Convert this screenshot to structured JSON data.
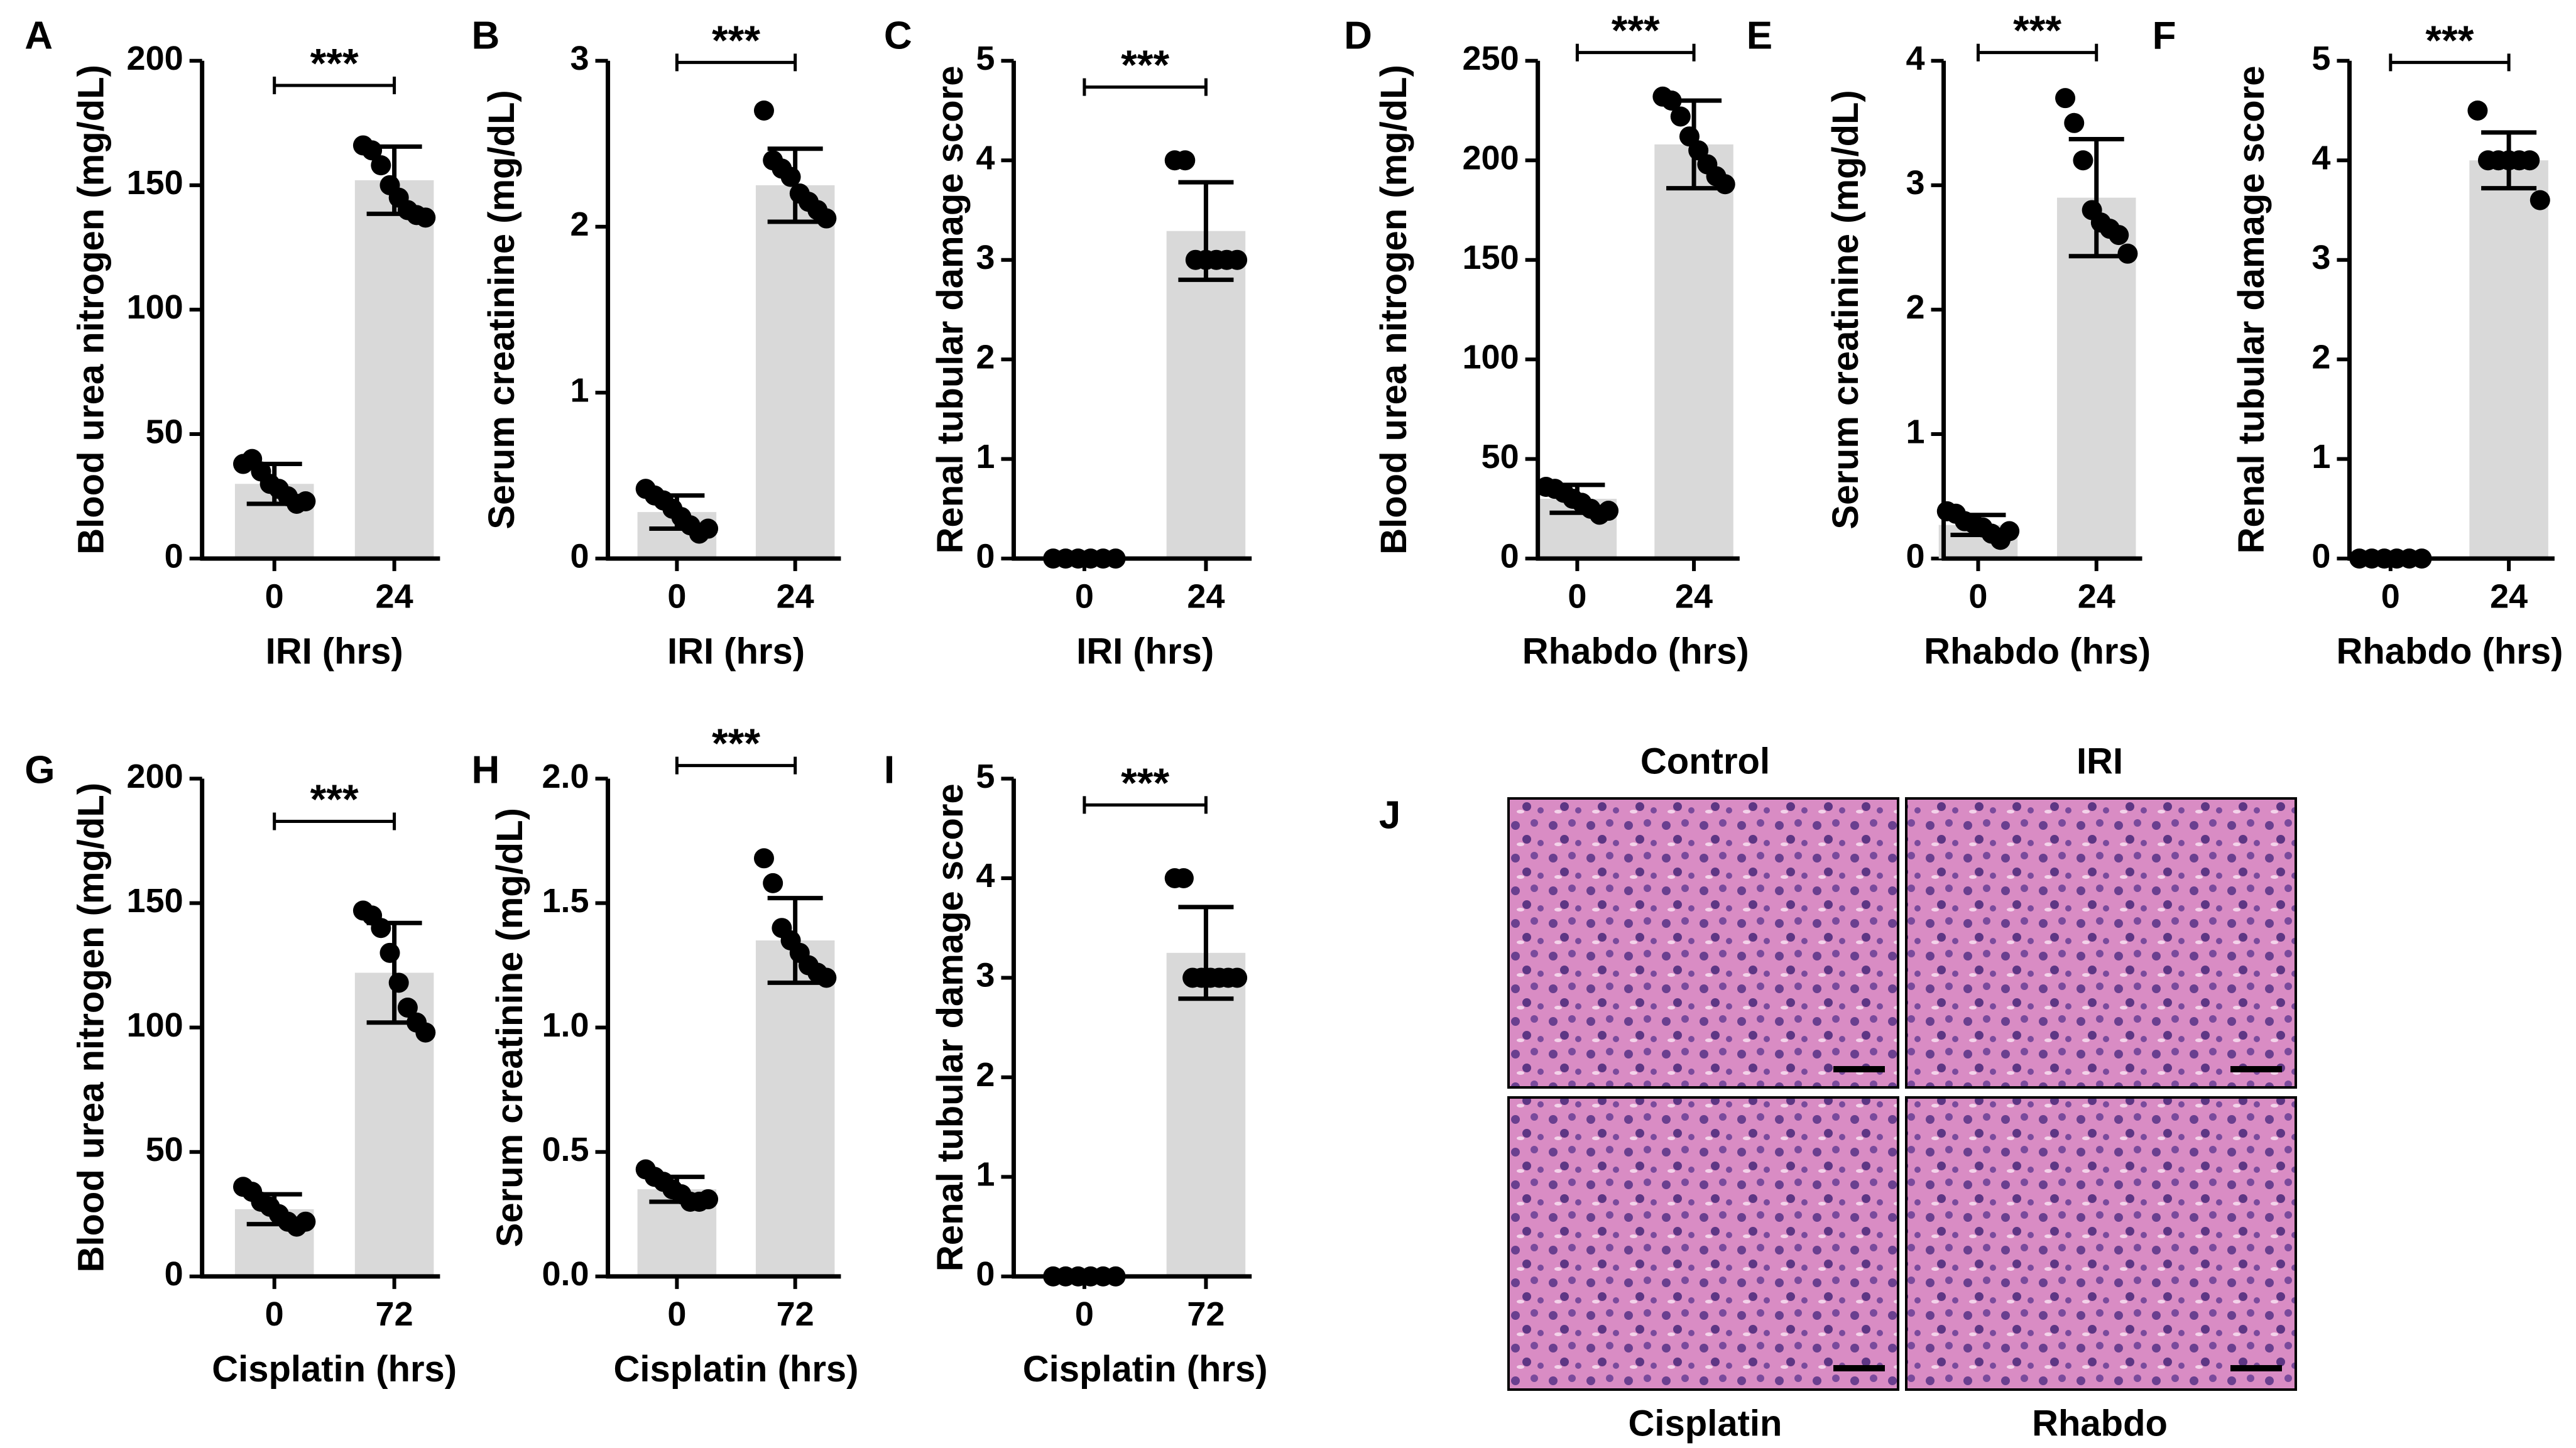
{
  "chart_data": [
    {
      "type": "bar",
      "panel": "A",
      "ylabel": "Blood urea nitrogen (mg/dL)",
      "xlabel": "IRI (hrs)",
      "categories": [
        "0",
        "24"
      ],
      "values": [
        30,
        152
      ],
      "errors": [
        8,
        13.5
      ],
      "points": [
        [
          38,
          40,
          35,
          30,
          28,
          25,
          22,
          23
        ],
        [
          166,
          164,
          158,
          150,
          145,
          140,
          138,
          137
        ]
      ],
      "annotation": "***",
      "color": "#d9d9d9",
      "point_color": "#000000",
      "ylim": [
        0,
        200
      ],
      "yticks": [
        0,
        50,
        100,
        150,
        200
      ]
    },
    {
      "type": "bar",
      "panel": "B",
      "ylabel": "Serum creatinine (mg/dL)",
      "xlabel": "IRI (hrs)",
      "categories": [
        "0",
        "24"
      ],
      "values": [
        0.28,
        2.25
      ],
      "errors": [
        0.1,
        0.22
      ],
      "points": [
        [
          0.42,
          0.38,
          0.35,
          0.3,
          0.25,
          0.2,
          0.15,
          0.18
        ],
        [
          2.7,
          2.4,
          2.35,
          2.3,
          2.2,
          2.15,
          2.1,
          2.05
        ]
      ],
      "annotation": "***",
      "color": "#d9d9d9",
      "point_color": "#000000",
      "ylim": [
        0,
        3
      ],
      "yticks": [
        0,
        1,
        2,
        3
      ]
    },
    {
      "type": "bar",
      "panel": "C",
      "ylabel": "Renal tubular damage score",
      "xlabel": "IRI (hrs)",
      "categories": [
        "0",
        "24"
      ],
      "values": [
        0,
        3.29
      ],
      "errors": [
        0,
        0.49
      ],
      "points": [
        [
          0,
          0,
          0,
          0,
          0,
          0
        ],
        [
          4,
          4,
          3,
          3,
          3,
          3,
          3
        ]
      ],
      "annotation": "***",
      "color": "#d9d9d9",
      "point_color": "#000000",
      "ylim": [
        0,
        5
      ],
      "yticks": [
        0,
        1,
        2,
        3,
        4,
        5
      ]
    },
    {
      "type": "bar",
      "panel": "D",
      "ylabel": "Blood urea nitrogen (mg/dL)",
      "xlabel": "Rhabdo (hrs)",
      "categories": [
        "0",
        "24"
      ],
      "values": [
        30,
        208
      ],
      "errors": [
        7,
        22
      ],
      "points": [
        [
          36,
          35,
          33,
          30,
          28,
          25,
          22,
          24
        ],
        [
          232,
          230,
          222,
          212,
          205,
          198,
          192,
          188
        ]
      ],
      "annotation": "***",
      "color": "#d9d9d9",
      "point_color": "#000000",
      "ylim": [
        0,
        250
      ],
      "yticks": [
        0,
        50,
        100,
        150,
        200,
        250
      ]
    },
    {
      "type": "bar",
      "panel": "E",
      "ylabel": "Serum creatinine (mg/dL)",
      "xlabel": "Rhabdo (hrs)",
      "categories": [
        "0",
        "24"
      ],
      "values": [
        0.27,
        2.9
      ],
      "errors": [
        0.08,
        0.47
      ],
      "points": [
        [
          0.38,
          0.36,
          0.3,
          0.28,
          0.25,
          0.2,
          0.15,
          0.22
        ],
        [
          3.7,
          3.5,
          3.2,
          2.8,
          2.7,
          2.65,
          2.6,
          2.45
        ]
      ],
      "annotation": "***",
      "color": "#d9d9d9",
      "point_color": "#000000",
      "ylim": [
        0,
        4
      ],
      "yticks": [
        0,
        1,
        2,
        3,
        4
      ]
    },
    {
      "type": "bar",
      "panel": "F",
      "ylabel": "Renal tubular damage score",
      "xlabel": "Rhabdo (hrs)",
      "categories": [
        "0",
        "24"
      ],
      "values": [
        0,
        4
      ],
      "errors": [
        0,
        0.28
      ],
      "points": [
        [
          0,
          0,
          0,
          0,
          0,
          0
        ],
        [
          4.5,
          4,
          4,
          4,
          4,
          4,
          3.6
        ]
      ],
      "annotation": "***",
      "color": "#d9d9d9",
      "point_color": "#000000",
      "ylim": [
        0,
        5
      ],
      "yticks": [
        0,
        1,
        2,
        3,
        4,
        5
      ]
    },
    {
      "type": "bar",
      "panel": "G",
      "ylabel": "Blood urea nitrogen (mg/dL)",
      "xlabel": "Cisplatin (hrs)",
      "categories": [
        "0",
        "72"
      ],
      "values": [
        27,
        122
      ],
      "errors": [
        6,
        20
      ],
      "points": [
        [
          36,
          34,
          30,
          28,
          25,
          22,
          20,
          22
        ],
        [
          147,
          145,
          140,
          130,
          118,
          108,
          102,
          98
        ]
      ],
      "annotation": "***",
      "color": "#d9d9d9",
      "point_color": "#000000",
      "ylim": [
        0,
        200
      ],
      "yticks": [
        0,
        50,
        100,
        150,
        200
      ]
    },
    {
      "type": "bar",
      "panel": "H",
      "ylabel": "Serum creatinine (mg/dL)",
      "xlabel": "Cisplatin (hrs)",
      "categories": [
        "0",
        "72"
      ],
      "values": [
        0.35,
        1.35
      ],
      "errors": [
        0.05,
        0.17
      ],
      "points": [
        [
          0.43,
          0.4,
          0.38,
          0.35,
          0.33,
          0.3,
          0.3,
          0.31
        ],
        [
          1.68,
          1.58,
          1.4,
          1.35,
          1.3,
          1.25,
          1.22,
          1.2
        ]
      ],
      "annotation": "***",
      "color": "#d9d9d9",
      "point_color": "#000000",
      "ylim": [
        0,
        2
      ],
      "yticks": [
        {
          "value": 0,
          "label": "0.0"
        },
        0.5,
        {
          "value": 1,
          "label": "1.0"
        },
        1.5,
        {
          "value": 2,
          "label": "2.0"
        }
      ]
    },
    {
      "type": "bar",
      "panel": "I",
      "ylabel": "Renal tubular damage score",
      "xlabel": "Cisplatin (hrs)",
      "categories": [
        "0",
        "72"
      ],
      "values": [
        0,
        3.25
      ],
      "errors": [
        0,
        0.46
      ],
      "points": [
        [
          0,
          0,
          0,
          0,
          0,
          0
        ],
        [
          4,
          4,
          3,
          3,
          3,
          3,
          3,
          3
        ]
      ],
      "annotation": "***",
      "color": "#d9d9d9",
      "point_color": "#000000",
      "ylim": [
        0,
        5
      ],
      "yticks": [
        0,
        1,
        2,
        3,
        4,
        5
      ]
    }
  ],
  "panel_j": {
    "label": "J",
    "images": [
      {
        "label": "Control"
      },
      {
        "label": "IRI"
      },
      {
        "label": "Cisplatin"
      },
      {
        "label": "Rhabdo"
      }
    ]
  }
}
